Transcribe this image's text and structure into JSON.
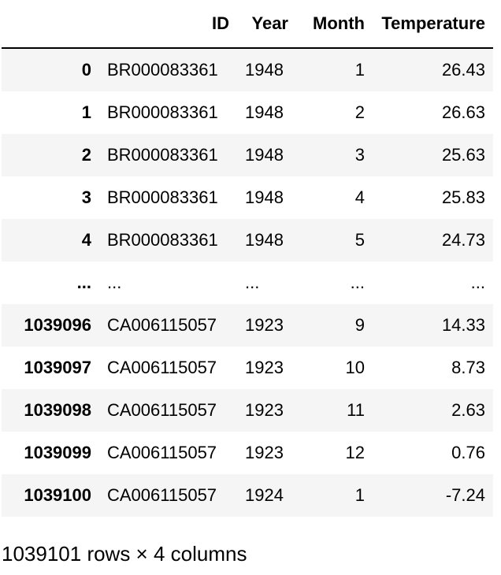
{
  "table": {
    "index_header": "",
    "columns": [
      "ID",
      "Year",
      "Month",
      "Temperature"
    ],
    "rows": [
      {
        "index": "0",
        "ID": "BR000083361",
        "Year": "1948",
        "Month": "1",
        "Temperature": "26.43"
      },
      {
        "index": "1",
        "ID": "BR000083361",
        "Year": "1948",
        "Month": "2",
        "Temperature": "26.63"
      },
      {
        "index": "2",
        "ID": "BR000083361",
        "Year": "1948",
        "Month": "3",
        "Temperature": "25.63"
      },
      {
        "index": "3",
        "ID": "BR000083361",
        "Year": "1948",
        "Month": "4",
        "Temperature": "25.83"
      },
      {
        "index": "4",
        "ID": "BR000083361",
        "Year": "1948",
        "Month": "5",
        "Temperature": "24.73"
      },
      {
        "index": "...",
        "ID": "...",
        "Year": "...",
        "Month": "...",
        "Temperature": "..."
      },
      {
        "index": "1039096",
        "ID": "CA006115057",
        "Year": "1923",
        "Month": "9",
        "Temperature": "14.33"
      },
      {
        "index": "1039097",
        "ID": "CA006115057",
        "Year": "1923",
        "Month": "10",
        "Temperature": "8.73"
      },
      {
        "index": "1039098",
        "ID": "CA006115057",
        "Year": "1923",
        "Month": "11",
        "Temperature": "2.63"
      },
      {
        "index": "1039099",
        "ID": "CA006115057",
        "Year": "1923",
        "Month": "12",
        "Temperature": "0.76"
      },
      {
        "index": "1039100",
        "ID": "CA006115057",
        "Year": "1924",
        "Month": "1",
        "Temperature": "-7.24"
      }
    ]
  },
  "shape_text": "1039101 rows × 4 columns"
}
